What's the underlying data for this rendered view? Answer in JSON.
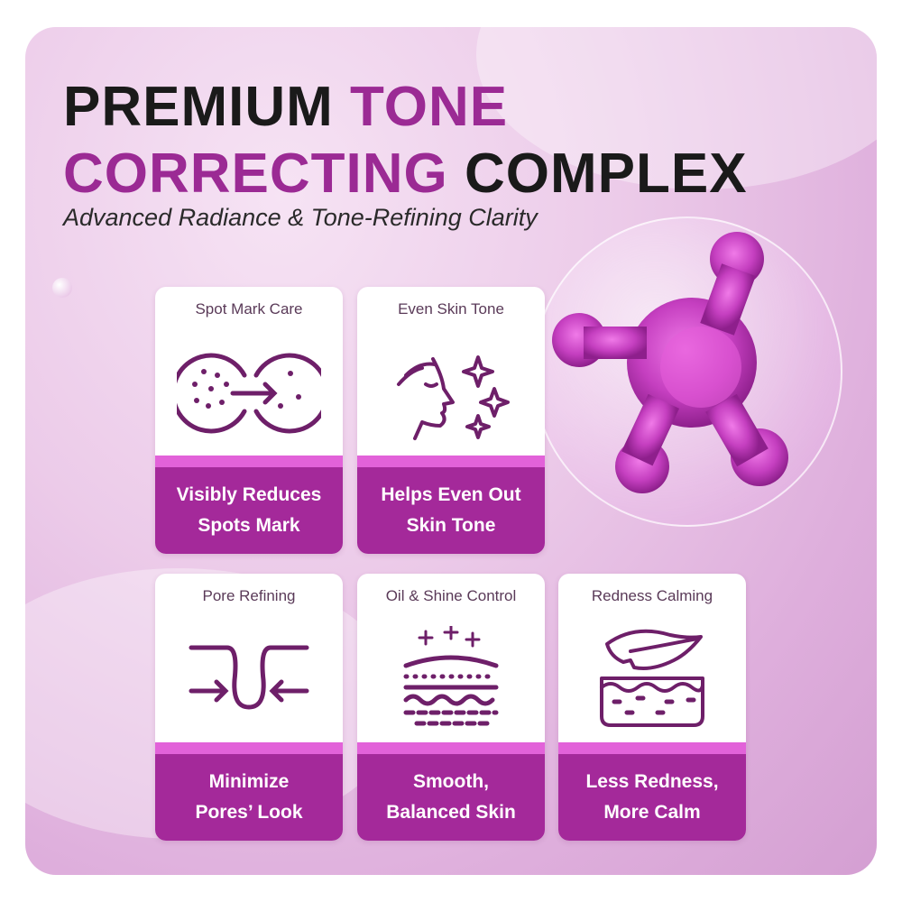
{
  "title": {
    "line1_dark": "PREMIUM ",
    "line1_accent": "TONE",
    "line2_accent": "CORRECTING ",
    "line2_dark": "COMPLEX"
  },
  "subtitle": "Advanced Radiance & Tone-Refining Clarity",
  "colors": {
    "accent": "#9b2a94",
    "card_bottom": "#a4299a",
    "stripe": "#e262d9",
    "icon": "#6e1f69"
  },
  "cards": [
    {
      "label": "Spot Mark Care",
      "icon": "spot-reduction-icon",
      "benefit_line1": "Visibly Reduces",
      "benefit_line2": "Spots Mark"
    },
    {
      "label": "Even Skin Tone",
      "icon": "face-sparkle-icon",
      "benefit_line1": "Helps Even Out",
      "benefit_line2": "Skin Tone"
    },
    {
      "label": "Pore Refining",
      "icon": "pore-icon",
      "benefit_line1": "Minimize",
      "benefit_line2": "Pores’ Look"
    },
    {
      "label": "Oil & Shine Control",
      "icon": "skin-layers-icon",
      "benefit_line1": "Smooth,",
      "benefit_line2": "Balanced Skin"
    },
    {
      "label": "Redness Calming",
      "icon": "leaf-skin-icon",
      "benefit_line1": "Less Redness,",
      "benefit_line2": "More Calm"
    }
  ]
}
